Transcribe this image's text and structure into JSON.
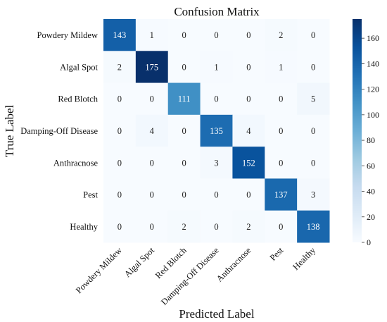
{
  "chart_data": {
    "type": "heatmap",
    "title": "Confusion Matrix",
    "xlabel": "Predicted Label",
    "ylabel": "True Label",
    "x_categories": [
      "Powdery Mildew",
      "Algal Spot",
      "Red Blotch",
      "Damping-Off Disease",
      "Anthracnose",
      "Pest",
      "Healthy"
    ],
    "y_categories": [
      "Powdery Mildew",
      "Algal Spot",
      "Red Blotch",
      "Damping-Off Disease",
      "Anthracnose",
      "Pest",
      "Healthy"
    ],
    "values": [
      [
        143,
        1,
        0,
        0,
        0,
        2,
        0
      ],
      [
        2,
        175,
        0,
        1,
        0,
        1,
        0
      ],
      [
        0,
        0,
        111,
        0,
        0,
        0,
        5
      ],
      [
        0,
        4,
        0,
        135,
        4,
        0,
        0
      ],
      [
        0,
        0,
        0,
        3,
        152,
        0,
        0
      ],
      [
        0,
        0,
        0,
        0,
        0,
        137,
        3
      ],
      [
        0,
        0,
        2,
        0,
        2,
        0,
        138
      ]
    ],
    "colormap": "Blues",
    "colorbar": {
      "min": 0,
      "max": 175,
      "ticks": [
        0,
        20,
        40,
        60,
        80,
        100,
        120,
        140,
        160
      ]
    },
    "grid": false,
    "legend": "colorbar-right"
  }
}
